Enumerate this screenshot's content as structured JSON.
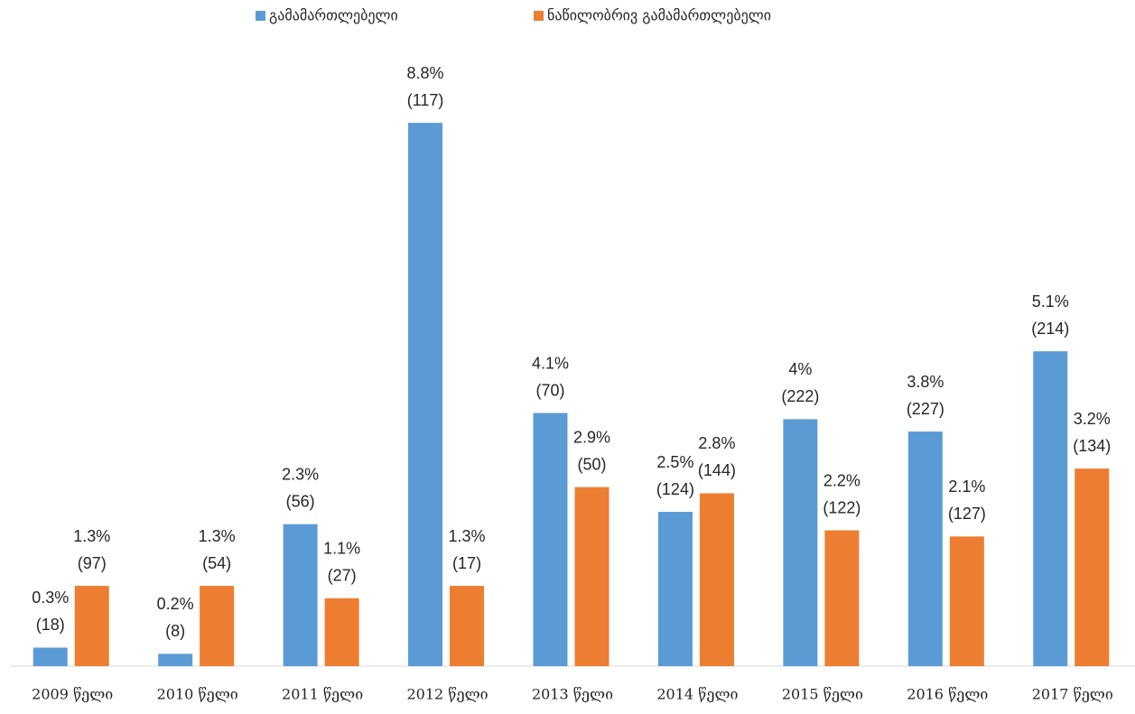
{
  "chart_data": {
    "type": "bar",
    "categories": [
      "2009 წელი",
      "2010 წელი",
      "2011 წელი",
      "2012 წელი",
      "2013 წელი",
      "2014 წელი",
      "2015 წელი",
      "2016 წელი",
      "2017 წელი"
    ],
    "series": [
      {
        "name": "გამამართლებელი",
        "color": "#5b9bd5",
        "values": [
          0.3,
          0.2,
          2.3,
          8.8,
          4.1,
          2.5,
          4,
          3.8,
          5.1
        ],
        "value_labels": [
          "0.3%",
          "0.2%",
          "2.3%",
          "8.8%",
          "4.1%",
          "2.5%",
          "4%",
          "3.8%",
          "5.1%"
        ],
        "count_labels": [
          "(18)",
          "(8)",
          "(56)",
          "(117)",
          "(70)",
          "(124)",
          "(222)",
          "(227)",
          "(214)"
        ]
      },
      {
        "name": "ნაწილობრივ გამამართლებელი",
        "color": "#ed7d31",
        "values": [
          1.3,
          1.3,
          1.1,
          1.3,
          2.9,
          2.8,
          2.2,
          2.1,
          3.2
        ],
        "value_labels": [
          "1.3%",
          "1.3%",
          "1.1%",
          "1.3%",
          "2.9%",
          "2.8%",
          "2.2%",
          "2.1%",
          "3.2%"
        ],
        "count_labels": [
          "(97)",
          "(54)",
          "(27)",
          "(17)",
          "(50)",
          "(144)",
          "(122)",
          "(127)",
          "(134)"
        ]
      }
    ],
    "ylim": [
      0,
      10
    ],
    "legend": "top"
  }
}
